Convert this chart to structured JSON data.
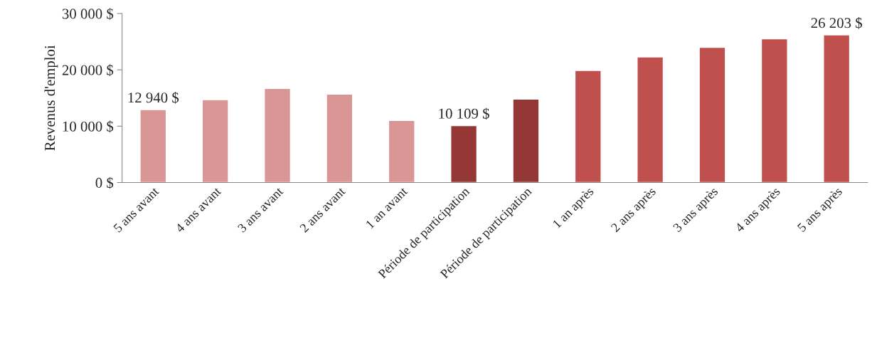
{
  "chart_data": {
    "type": "bar",
    "ylabel": "Revenus d'emploi",
    "categories": [
      "5 ans avant",
      "4 ans avant",
      "3 ans avant",
      "2 ans avant",
      "1 an avant",
      "Période de participation",
      "Période de participation",
      "1 an après",
      "2 ans après",
      "3 ans après",
      "4 ans après",
      "5 ans après"
    ],
    "values": [
      12940,
      14700,
      16700,
      15700,
      11000,
      10109,
      14800,
      19900,
      22300,
      24000,
      25500,
      26203
    ],
    "colors": [
      "#d99694",
      "#d99694",
      "#d99694",
      "#d99694",
      "#d99694",
      "#953735",
      "#953735",
      "#c0504d",
      "#c0504d",
      "#c0504d",
      "#c0504d",
      "#c0504d"
    ],
    "value_labels": [
      "12 940 $",
      null,
      null,
      null,
      null,
      "10 109 $",
      null,
      null,
      null,
      null,
      null,
      "26 203 $"
    ],
    "ylim": [
      0,
      30000
    ],
    "yticks": [
      {
        "value": 0,
        "label": "0 $"
      },
      {
        "value": 10000,
        "label": "10 000 $"
      },
      {
        "value": 20000,
        "label": "20 000 $"
      },
      {
        "value": 30000,
        "label": "30 000 $"
      }
    ],
    "grid": false,
    "legend": false
  }
}
